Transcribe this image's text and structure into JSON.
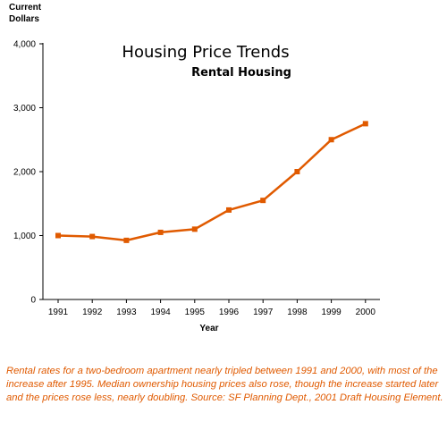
{
  "chart_data": {
    "type": "line",
    "title": "Housing Price Trends",
    "subtitle": "Rental Housing",
    "ylabel_lines": [
      "Current",
      "Dollars"
    ],
    "xlabel": "Year",
    "categories": [
      "1991",
      "1992",
      "1993",
      "1994",
      "1995",
      "1996",
      "1997",
      "1998",
      "1999",
      "2000"
    ],
    "series": [
      {
        "values": [
          1000,
          985,
          925,
          1050,
          1100,
          1400,
          1550,
          2000,
          2500,
          2750
        ]
      }
    ],
    "ylim": [
      0,
      4000
    ],
    "yticks": [
      "0",
      "1,000",
      "2,000",
      "3,000",
      "4,000"
    ],
    "grid": false,
    "colors": {
      "line": "#e05a00",
      "axis": "#000000"
    }
  },
  "caption": "Rental rates for a two-bedroom apartment nearly tripled between 1991 and 2000, with most of the increase after 1995.  Median ownership housing prices also rose, though the increase started later and the prices rose less, nearly doubling.  Source:  SF Planning Dept., 2001 Draft Housing Element."
}
